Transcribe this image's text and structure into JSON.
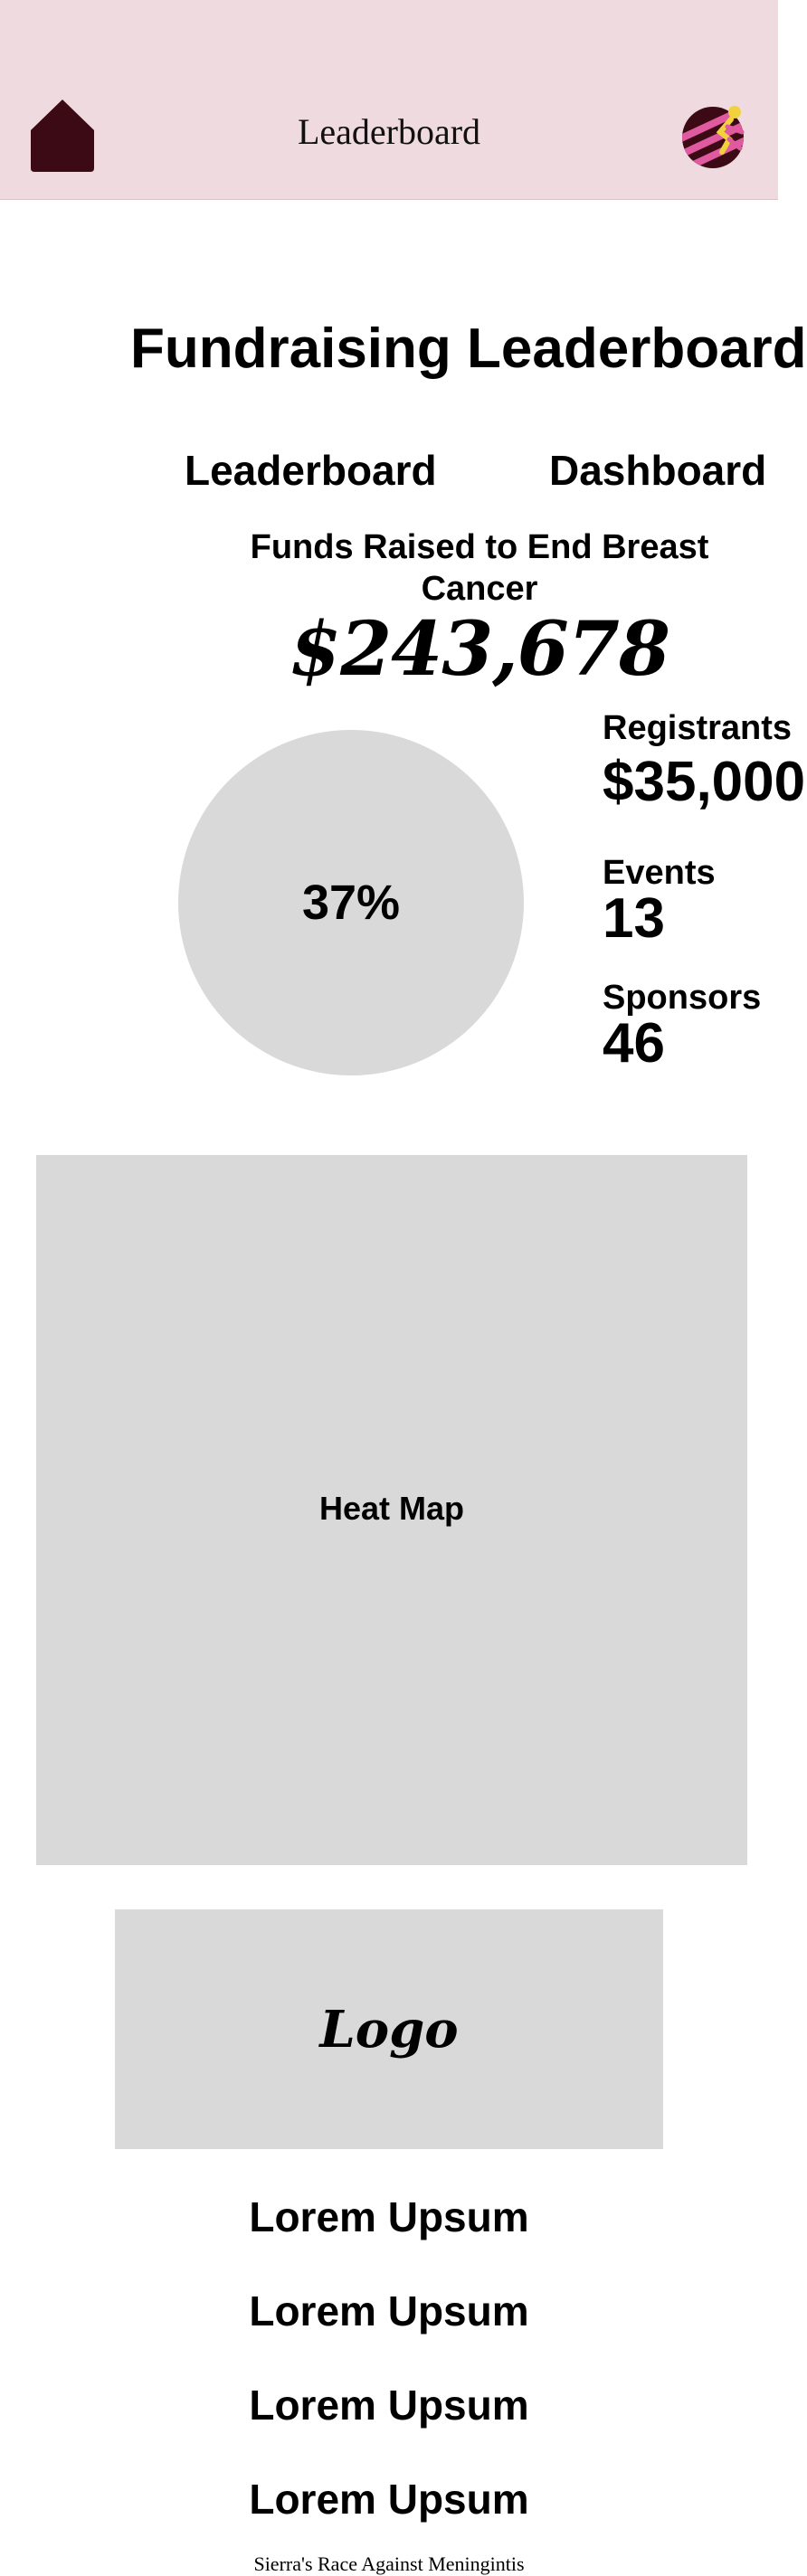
{
  "header": {
    "title": "Leaderboard",
    "home_icon": "home-icon",
    "avatar_icon": "runner-avatar-icon",
    "colors": {
      "background": "#efdae0",
      "home": "#3b0a14",
      "avatar_dark": "#3b0a14",
      "avatar_pink": "#e05aa0",
      "avatar_yellow": "#f2d23c"
    }
  },
  "page_title": "Fundraising Leaderboard",
  "tabs": [
    {
      "label": "Leaderboard"
    },
    {
      "label": "Dashboard"
    }
  ],
  "funds": {
    "label": "Funds Raised to End Breast Cancer",
    "amount": "$243,678",
    "progress": "37%"
  },
  "stats": {
    "registrations": {
      "label": "Registrants",
      "value": "$35,000"
    },
    "events": {
      "label": "Events",
      "value": "13"
    },
    "sponsors": {
      "label": "Sponsors",
      "value": "46"
    }
  },
  "heatmap": {
    "label": "Heat Map"
  },
  "logo": {
    "label": "Logo"
  },
  "links": [
    "Lorem Upsum",
    "Lorem Upsum",
    "Lorem Upsum",
    "Lorem Upsum"
  ],
  "footer": {
    "text": "Sierra's Race Against Meningintis"
  }
}
